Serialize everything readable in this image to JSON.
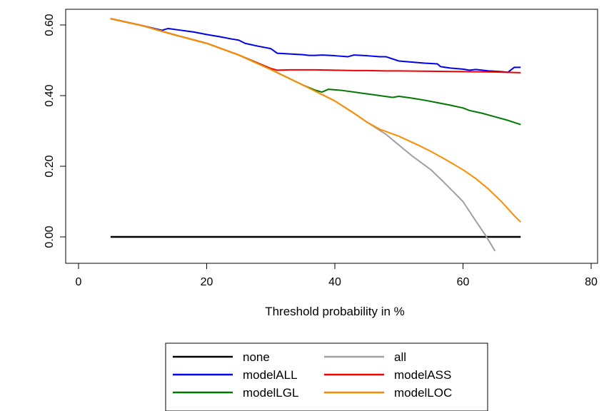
{
  "chart_data": {
    "type": "line",
    "title": "",
    "xlabel": "Threshold probability in %",
    "ylabel": "",
    "xlim": [
      0,
      80
    ],
    "ylim": [
      -0.04,
      0.64
    ],
    "x_ticks": [
      0,
      20,
      40,
      60,
      80
    ],
    "x_tick_labels": [
      "0",
      "20",
      "40",
      "60",
      "80"
    ],
    "y_ticks": [
      0.0,
      0.2,
      0.4,
      0.6
    ],
    "y_tick_labels": [
      "0.00",
      "0.20",
      "0.40",
      "0.60"
    ],
    "legend_position": "bottom",
    "grid": false,
    "series": [
      {
        "name": "none",
        "color": "#000000",
        "points": [
          [
            5,
            0.0
          ],
          [
            69,
            0.0
          ]
        ]
      },
      {
        "name": "all",
        "color": "#a0a0a0",
        "points": [
          [
            5,
            0.618
          ],
          [
            10,
            0.598
          ],
          [
            15,
            0.572
          ],
          [
            20,
            0.548
          ],
          [
            25,
            0.515
          ],
          [
            30,
            0.474
          ],
          [
            35,
            0.43
          ],
          [
            40,
            0.385
          ],
          [
            43,
            0.35
          ],
          [
            45,
            0.325
          ],
          [
            48,
            0.29
          ],
          [
            50,
            0.26
          ],
          [
            52,
            0.23
          ],
          [
            55,
            0.19
          ],
          [
            57,
            0.155
          ],
          [
            60,
            0.1
          ],
          [
            62,
            0.045
          ],
          [
            63.5,
            0.005
          ],
          [
            64,
            -0.01
          ],
          [
            65,
            -0.04
          ]
        ]
      },
      {
        "name": "modelALL",
        "color": "#0000ee",
        "points": [
          [
            5,
            0.618
          ],
          [
            10,
            0.598
          ],
          [
            13,
            0.585
          ],
          [
            14,
            0.59
          ],
          [
            16,
            0.585
          ],
          [
            18,
            0.58
          ],
          [
            20,
            0.573
          ],
          [
            22,
            0.567
          ],
          [
            24,
            0.56
          ],
          [
            25,
            0.557
          ],
          [
            26,
            0.548
          ],
          [
            28,
            0.54
          ],
          [
            30,
            0.533
          ],
          [
            31,
            0.52
          ],
          [
            33,
            0.518
          ],
          [
            35,
            0.516
          ],
          [
            36,
            0.514
          ],
          [
            37,
            0.514
          ],
          [
            38,
            0.515
          ],
          [
            40,
            0.513
          ],
          [
            42,
            0.51
          ],
          [
            43,
            0.515
          ],
          [
            45,
            0.513
          ],
          [
            47,
            0.51
          ],
          [
            48,
            0.51
          ],
          [
            50,
            0.498
          ],
          [
            52,
            0.495
          ],
          [
            54,
            0.492
          ],
          [
            56,
            0.49
          ],
          [
            56.5,
            0.482
          ],
          [
            58,
            0.478
          ],
          [
            60,
            0.475
          ],
          [
            61,
            0.472
          ],
          [
            62,
            0.474
          ],
          [
            64,
            0.47
          ],
          [
            66,
            0.468
          ],
          [
            67,
            0.466
          ],
          [
            68,
            0.48
          ],
          [
            69,
            0.48
          ]
        ]
      },
      {
        "name": "modelASS",
        "color": "#ee0000",
        "points": [
          [
            5,
            0.618
          ],
          [
            10,
            0.598
          ],
          [
            15,
            0.572
          ],
          [
            20,
            0.548
          ],
          [
            25,
            0.515
          ],
          [
            30,
            0.477
          ],
          [
            31,
            0.472
          ],
          [
            33,
            0.473
          ],
          [
            35,
            0.473
          ],
          [
            37,
            0.473
          ],
          [
            40,
            0.472
          ],
          [
            43,
            0.471
          ],
          [
            45,
            0.471
          ],
          [
            48,
            0.47
          ],
          [
            50,
            0.47
          ],
          [
            55,
            0.469
          ],
          [
            60,
            0.468
          ],
          [
            65,
            0.467
          ],
          [
            69,
            0.465
          ]
        ]
      },
      {
        "name": "modelLGL",
        "color": "#007700",
        "points": [
          [
            5,
            0.618
          ],
          [
            10,
            0.598
          ],
          [
            15,
            0.572
          ],
          [
            20,
            0.548
          ],
          [
            25,
            0.515
          ],
          [
            30,
            0.474
          ],
          [
            35,
            0.43
          ],
          [
            37,
            0.415
          ],
          [
            38,
            0.41
          ],
          [
            39,
            0.418
          ],
          [
            41,
            0.415
          ],
          [
            43,
            0.41
          ],
          [
            45,
            0.405
          ],
          [
            47,
            0.4
          ],
          [
            49,
            0.395
          ],
          [
            50,
            0.398
          ],
          [
            52,
            0.393
          ],
          [
            54,
            0.387
          ],
          [
            56,
            0.38
          ],
          [
            58,
            0.373
          ],
          [
            60,
            0.365
          ],
          [
            61,
            0.358
          ],
          [
            63,
            0.35
          ],
          [
            65,
            0.34
          ],
          [
            67,
            0.33
          ],
          [
            69,
            0.318
          ]
        ]
      },
      {
        "name": "modelLOC",
        "color": "#ff8c00",
        "points": [
          [
            5,
            0.618
          ],
          [
            10,
            0.598
          ],
          [
            15,
            0.572
          ],
          [
            20,
            0.548
          ],
          [
            25,
            0.515
          ],
          [
            30,
            0.474
          ],
          [
            35,
            0.43
          ],
          [
            40,
            0.385
          ],
          [
            43,
            0.35
          ],
          [
            45,
            0.325
          ],
          [
            47,
            0.305
          ],
          [
            50,
            0.285
          ],
          [
            53,
            0.26
          ],
          [
            55,
            0.242
          ],
          [
            57,
            0.222
          ],
          [
            60,
            0.19
          ],
          [
            62,
            0.165
          ],
          [
            64,
            0.135
          ],
          [
            66,
            0.1
          ],
          [
            68,
            0.06
          ],
          [
            69,
            0.042
          ]
        ]
      }
    ]
  }
}
